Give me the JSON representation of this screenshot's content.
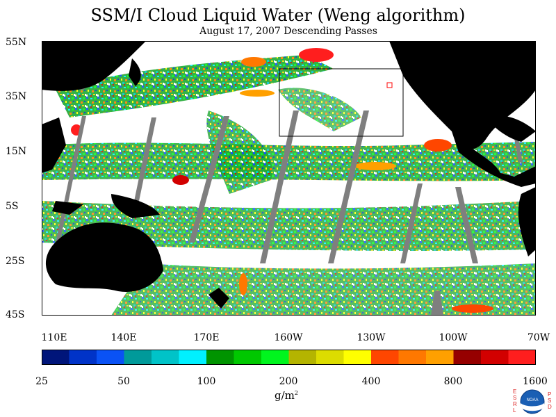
{
  "title": "SSM/I Cloud Liquid Water (Weng algorithm)",
  "subtitle": "August 17, 2007  Descending Passes",
  "lat_labels": [
    "55N",
    "35N",
    "15N",
    "5S",
    "25S",
    "45S"
  ],
  "lon_labels": [
    "110E",
    "140E",
    "170E",
    "160W",
    "130W",
    "100W",
    "70W"
  ],
  "colorbar": {
    "tick_labels": [
      "25",
      "50",
      "100",
      "200",
      "400",
      "800",
      "1600"
    ],
    "colors": [
      "#00157a",
      "#0033c8",
      "#0a52f5",
      "#009a9a",
      "#00c3c8",
      "#00f0ff",
      "#009400",
      "#00c800",
      "#00f51e",
      "#b4b400",
      "#dcdc00",
      "#ffff00",
      "#ff4600",
      "#ff7800",
      "#ffa000",
      "#960000",
      "#d20000",
      "#ff1e1e"
    ],
    "unit": "g/m",
    "unit_exponent": "2"
  },
  "legend_colors": {
    "land": "#000000",
    "no_data": "#7f7f7f",
    "no_cloud": "#ffffff"
  },
  "logo": {
    "left_letters": [
      "E",
      "S",
      "R",
      "L"
    ],
    "right_letters": [
      "P",
      "S",
      "D"
    ],
    "seal_text": "NOAA"
  }
}
